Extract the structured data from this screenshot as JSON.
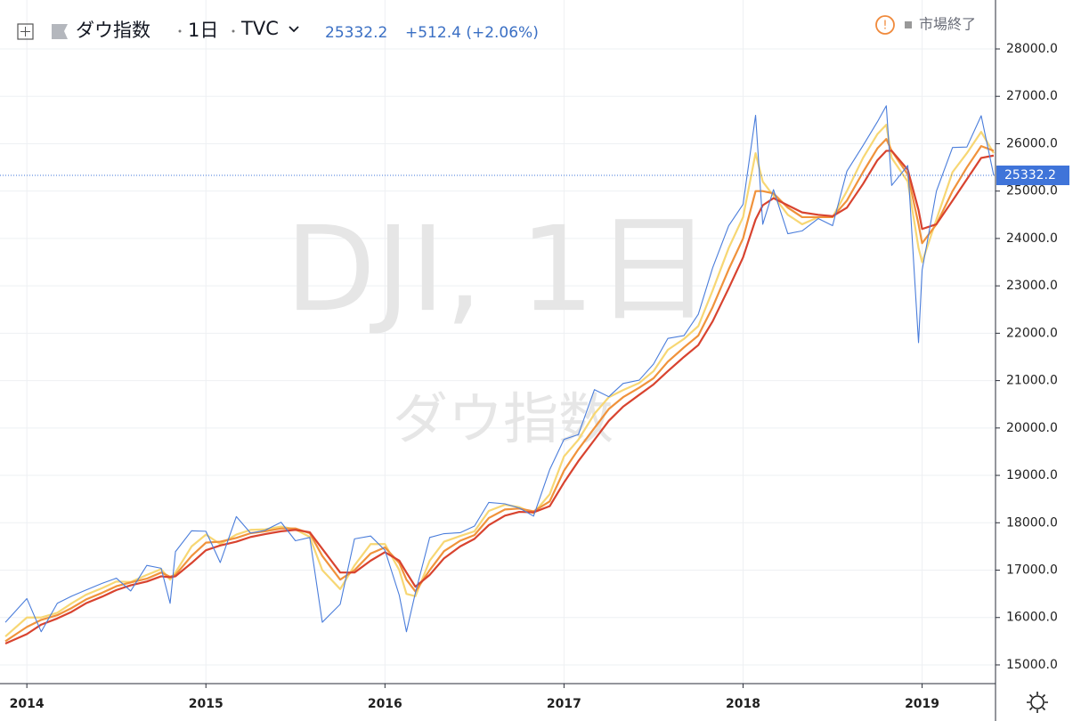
{
  "chart_data": {
    "type": "line",
    "symbol": "ダウ指数",
    "interval": "1日",
    "source": "TVC",
    "change": "+512.4 (+2.06%)",
    "status": "市場終了",
    "watermark": "DJI, 1日",
    "watermark_sub": "ダウ指数",
    "x": [
      2013.88,
      2014.0,
      2014.08,
      2014.17,
      2014.25,
      2014.33,
      2014.42,
      2014.5,
      2014.58,
      2014.67,
      2014.75,
      2014.8,
      2014.83,
      2014.92,
      2015.0,
      2015.08,
      2015.17,
      2015.25,
      2015.33,
      2015.42,
      2015.5,
      2015.58,
      2015.65,
      2015.75,
      2015.83,
      2015.92,
      2016.0,
      2016.08,
      2016.12,
      2016.17,
      2016.25,
      2016.33,
      2016.42,
      2016.5,
      2016.58,
      2016.67,
      2016.75,
      2016.83,
      2016.92,
      2017.0,
      2017.08,
      2017.17,
      2017.25,
      2017.33,
      2017.42,
      2017.5,
      2017.58,
      2017.67,
      2017.75,
      2017.83,
      2017.92,
      2018.0,
      2018.07,
      2018.11,
      2018.17,
      2018.25,
      2018.33,
      2018.42,
      2018.5,
      2018.58,
      2018.67,
      2018.75,
      2018.8,
      2018.83,
      2018.92,
      2018.98,
      2019.0,
      2019.08,
      2019.17,
      2019.25,
      2019.33,
      2019.4
    ],
    "series": [
      {
        "color": "#f7d774",
        "values": [
          15600,
          16000,
          16000,
          16100,
          16300,
          16480,
          16620,
          16760,
          16750,
          16900,
          17020,
          16800,
          16950,
          17500,
          17750,
          17550,
          17750,
          17850,
          17860,
          17920,
          17860,
          17700,
          17000,
          16600,
          17100,
          17550,
          17550,
          17000,
          16500,
          16450,
          17200,
          17600,
          17720,
          17820,
          18250,
          18380,
          18330,
          18200,
          18600,
          19400,
          19750,
          20300,
          20650,
          20800,
          20950,
          21200,
          21650,
          21880,
          22150,
          22900,
          23800,
          24450,
          25800,
          25200,
          24900,
          24500,
          24300,
          24450,
          24450,
          25000,
          25700,
          26200,
          26400,
          25700,
          25200,
          23800,
          23500,
          24400,
          25400,
          25800,
          26250,
          25800
        ]
      },
      {
        "color": "#f0923b",
        "values": [
          15500,
          15800,
          15950,
          16050,
          16200,
          16380,
          16520,
          16660,
          16740,
          16820,
          16950,
          16860,
          16900,
          17300,
          17580,
          17600,
          17680,
          17780,
          17820,
          17880,
          17880,
          17780,
          17300,
          16800,
          17000,
          17350,
          17480,
          17150,
          16800,
          16550,
          17000,
          17400,
          17620,
          17740,
          18100,
          18280,
          18300,
          18240,
          18450,
          19100,
          19550,
          20000,
          20400,
          20650,
          20850,
          21050,
          21400,
          21700,
          21950,
          22550,
          23350,
          24000,
          25000,
          25000,
          24950,
          24650,
          24450,
          24450,
          24450,
          24800,
          25400,
          25900,
          26100,
          25850,
          25350,
          24300,
          23900,
          24300,
          25000,
          25500,
          25950,
          25850
        ]
      },
      {
        "color": "#d8432f",
        "values": [
          15450,
          15650,
          15850,
          15980,
          16120,
          16300,
          16440,
          16580,
          16680,
          16760,
          16870,
          16850,
          16870,
          17150,
          17420,
          17520,
          17600,
          17700,
          17760,
          17820,
          17850,
          17800,
          17450,
          16950,
          16950,
          17200,
          17380,
          17200,
          16950,
          16650,
          16900,
          17250,
          17500,
          17660,
          17950,
          18150,
          18230,
          18220,
          18350,
          18850,
          19300,
          19750,
          20150,
          20450,
          20700,
          20920,
          21200,
          21500,
          21750,
          22250,
          22950,
          23600,
          24400,
          24700,
          24850,
          24700,
          24550,
          24500,
          24470,
          24650,
          25150,
          25650,
          25850,
          25850,
          25450,
          24600,
          24200,
          24300,
          24800,
          25250,
          25700,
          25750
        ]
      },
      {
        "color": "#4a7ddb",
        "values": [
          15900,
          16400,
          15700,
          16300,
          16450,
          16580,
          16720,
          16830,
          16560,
          17100,
          17040,
          16300,
          17390,
          17830,
          17820,
          17160,
          18130,
          17780,
          17840,
          18010,
          17620,
          17690,
          15900,
          16280,
          17660,
          17720,
          17420,
          16470,
          15700,
          16520,
          17690,
          17770,
          17790,
          17930,
          18430,
          18400,
          18310,
          18140,
          19120,
          19760,
          19860,
          20810,
          20660,
          20940,
          21010,
          21350,
          21890,
          21950,
          22400,
          23380,
          24270,
          24720,
          26600,
          24300,
          25030,
          24100,
          24160,
          24420,
          24270,
          25420,
          25960,
          26460,
          26800,
          25120,
          25540,
          21800,
          23330,
          25000,
          25920,
          25930,
          26590,
          25332.2
        ]
      }
    ],
    "last_color": "#3f74d9",
    "xlim": [
      2013.85,
      2019.41
    ],
    "xticks": [
      2014,
      2015,
      2016,
      2017,
      2018,
      2019
    ],
    "ylim": [
      14605,
      29033
    ],
    "yticks": [
      {
        "value": 15000,
        "label": "15000.0"
      },
      {
        "value": 16000,
        "label": "16000.0"
      },
      {
        "value": 17000,
        "label": "17000.0"
      },
      {
        "value": 18000,
        "label": "18000.0"
      },
      {
        "value": 19000,
        "label": "19000.0"
      },
      {
        "value": 20000,
        "label": "20000.0"
      },
      {
        "value": 21000,
        "label": "21000.0"
      },
      {
        "value": 22000,
        "label": "22000.0"
      },
      {
        "value": 23000,
        "label": "23000.0"
      },
      {
        "value": 24000,
        "label": "24000.0"
      },
      {
        "value": 25000,
        "label": "25000.0"
      },
      {
        "value": 26000,
        "label": "26000.0"
      },
      {
        "value": 27000,
        "label": "27000.0"
      },
      {
        "value": 28000,
        "label": "28000.0"
      }
    ],
    "grid": true
  }
}
